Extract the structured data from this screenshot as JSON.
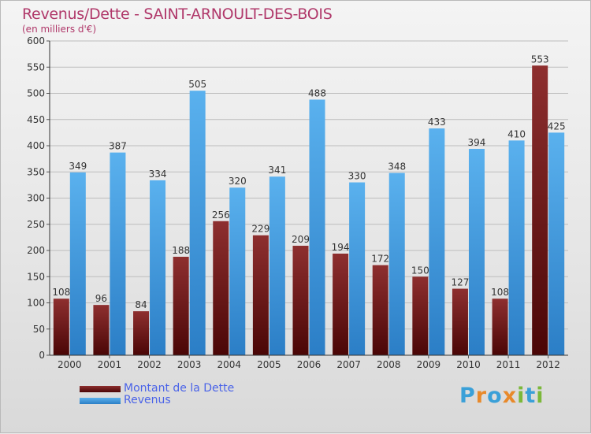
{
  "header": {
    "title": "Revenus/Dette - SAINT-ARNOULT-DES-BOIS",
    "subtitle": "(en milliers d'€)"
  },
  "legend": {
    "items": [
      {
        "label": "Montant de la Dette",
        "color": "#7a1a1a"
      },
      {
        "label": "Revenus",
        "color": "#3f9be3"
      }
    ]
  },
  "logo": {
    "text": "Proxiti",
    "letters": [
      "P",
      "r",
      "o",
      "x",
      "i",
      "t",
      "i"
    ],
    "colors": [
      "#3aa0d8",
      "#e8892a",
      "#3aa0d8",
      "#e8892a",
      "#7bb83a",
      "#3aa0d8",
      "#7bb83a"
    ]
  },
  "chart_data": {
    "type": "bar",
    "title": "Revenus/Dette - SAINT-ARNOULT-DES-BOIS",
    "subtitle": "(en milliers d'€)",
    "categories": [
      "2000",
      "2001",
      "2002",
      "2003",
      "2004",
      "2005",
      "2006",
      "2007",
      "2008",
      "2009",
      "2010",
      "2011",
      "2012"
    ],
    "series": [
      {
        "name": "Montant de la Dette",
        "values": [
          108,
          96,
          84,
          188,
          256,
          229,
          209,
          194,
          172,
          150,
          127,
          108,
          553
        ],
        "color": "#7a1a1a"
      },
      {
        "name": "Revenus",
        "values": [
          349,
          387,
          334,
          505,
          320,
          341,
          488,
          330,
          348,
          433,
          394,
          410,
          425
        ],
        "color": "#3f9be3"
      }
    ],
    "ylim": [
      0,
      600
    ],
    "yticks": [
      0,
      50,
      100,
      150,
      200,
      250,
      300,
      350,
      400,
      450,
      500,
      550,
      600
    ],
    "grid": true,
    "legend_position": "bottom-left"
  }
}
